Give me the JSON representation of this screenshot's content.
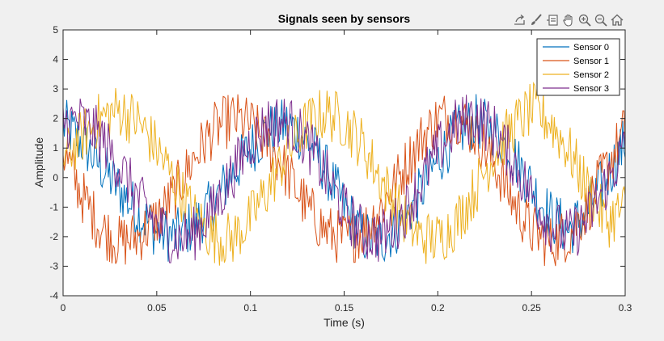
{
  "window": {
    "background": "#f0f0f0"
  },
  "toolbar": {
    "buttons": [
      {
        "name": "export-icon"
      },
      {
        "name": "brush-icon"
      },
      {
        "name": "datatip-icon"
      },
      {
        "name": "pan-hand-icon"
      },
      {
        "name": "zoom-in-icon"
      },
      {
        "name": "zoom-out-icon"
      },
      {
        "name": "home-icon"
      }
    ]
  },
  "chart_data": {
    "type": "line",
    "title": "Signals seen by sensors",
    "xlabel": "Time (s)",
    "ylabel": "Amplitude",
    "xlim": [
      0,
      0.3
    ],
    "ylim": [
      -4,
      5
    ],
    "xticks": [
      0,
      0.05,
      0.1,
      0.15,
      0.2,
      0.25,
      0.3
    ],
    "xtick_labels": [
      "0",
      "0.05",
      "0.1",
      "0.15",
      "0.2",
      "0.25",
      "0.3"
    ],
    "yticks": [
      -4,
      -3,
      -2,
      -1,
      0,
      1,
      2,
      3,
      4,
      5
    ],
    "ytick_labels": [
      "-4",
      "-3",
      "-2",
      "-1",
      "0",
      "1",
      "2",
      "3",
      "4",
      "5"
    ],
    "grid": false,
    "legend_position": "top-right",
    "x": [
      0,
      0.01,
      0.02,
      0.03,
      0.04,
      0.05,
      0.06,
      0.07,
      0.08,
      0.09,
      0.1,
      0.11,
      0.12,
      0.13,
      0.14,
      0.15,
      0.16,
      0.17,
      0.18,
      0.19,
      0.2,
      0.21,
      0.22,
      0.23,
      0.24,
      0.25,
      0.26,
      0.27,
      0.28,
      0.29,
      0.3
    ],
    "series": [
      {
        "name": "Sensor 0",
        "color": "#0072bd",
        "values": [
          1.8,
          1.2,
          0.4,
          -0.4,
          -1.2,
          -1.8,
          -2.0,
          -1.6,
          -0.9,
          0.1,
          1.0,
          1.6,
          1.8,
          1.3,
          0.3,
          -1.0,
          -2.0,
          -2.1,
          -1.6,
          -0.6,
          0.6,
          1.5,
          1.9,
          1.6,
          0.8,
          -0.3,
          -1.3,
          -1.8,
          -1.1,
          0.0,
          1.2
        ]
      },
      {
        "name": "Sensor 1",
        "color": "#d95319",
        "values": [
          0.9,
          -0.6,
          -1.7,
          -2.2,
          -2.0,
          -1.4,
          -0.5,
          0.7,
          1.6,
          2.0,
          1.8,
          1.1,
          0.1,
          -1.0,
          -1.8,
          -2.1,
          -1.8,
          -1.0,
          0.1,
          1.2,
          2.0,
          2.1,
          1.5,
          0.5,
          -0.8,
          -1.8,
          -2.2,
          -1.9,
          -1.0,
          0.3,
          1.6
        ]
      },
      {
        "name": "Sensor 2",
        "color": "#edb120",
        "values": [
          0.6,
          1.4,
          2.0,
          2.3,
          1.9,
          1.0,
          -0.2,
          -1.3,
          -2.0,
          -2.1,
          -1.4,
          -0.3,
          0.9,
          1.8,
          2.2,
          1.9,
          1.1,
          -0.1,
          -1.2,
          -2.0,
          -2.1,
          -1.5,
          -0.4,
          0.8,
          1.7,
          2.3,
          1.9,
          0.9,
          -0.4,
          -1.5,
          -1.0
        ]
      },
      {
        "name": "Sensor 3",
        "color": "#7e2f8e",
        "values": [
          1.9,
          1.9,
          1.4,
          0.4,
          -0.7,
          -1.6,
          -2.1,
          -1.9,
          -1.1,
          0.1,
          1.2,
          1.9,
          1.9,
          1.2,
          0.1,
          -1.1,
          -1.9,
          -2.0,
          -1.4,
          -0.3,
          0.9,
          1.8,
          2.1,
          1.6,
          0.6,
          -0.6,
          -1.6,
          -2.0,
          -1.4,
          -0.2,
          1.0
        ]
      }
    ]
  }
}
